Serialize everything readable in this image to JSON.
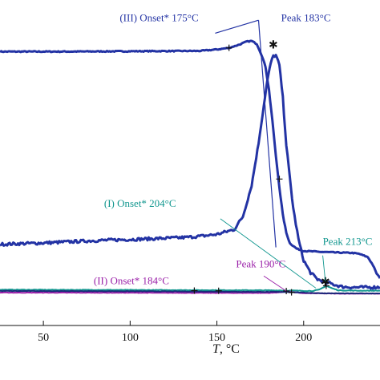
{
  "chart_data": {
    "type": "line",
    "xlabel_italic": "T",
    "xlabel_unit": ", °C",
    "xlim": [
      25,
      244
    ],
    "ylim": [
      0,
      1
    ],
    "x_ticks": [
      50,
      100,
      150,
      200
    ],
    "x_tick_labels": [
      "50",
      "100",
      "150",
      "200"
    ],
    "grid": false,
    "colors": {
      "blue": "#2333a4",
      "teal": "#12978f",
      "purple": "#9a1fa8",
      "connector": "#777777"
    },
    "series": [
      {
        "key": "III",
        "color": "#2333a4",
        "width": 3,
        "points": [
          [
            25,
            0.8415
          ],
          [
            60,
            0.8415
          ],
          [
            100,
            0.8425
          ],
          [
            140,
            0.8435
          ],
          [
            150,
            0.848
          ],
          [
            157,
            0.853
          ],
          [
            163,
            0.863
          ],
          [
            167,
            0.872
          ],
          [
            170,
            0.874
          ],
          [
            173,
            0.865
          ],
          [
            176,
            0.828
          ],
          [
            178,
            0.795
          ],
          [
            180,
            0.725
          ],
          [
            182,
            0.628
          ],
          [
            184,
            0.52
          ],
          [
            186,
            0.425
          ],
          [
            188,
            0.34
          ],
          [
            190,
            0.285
          ],
          [
            192,
            0.253
          ],
          [
            196,
            0.236
          ],
          [
            200,
            0.229
          ],
          [
            210,
            0.226
          ],
          [
            220,
            0.224
          ],
          [
            228,
            0.223
          ],
          [
            232,
            0.22
          ],
          [
            237,
            0.21
          ],
          [
            240,
            0.185
          ],
          [
            242,
            0.16
          ],
          [
            244,
            0.145
          ]
        ],
        "jitter": 0.0015
      },
      {
        "key": "I",
        "color": "#2333a4",
        "width": 3,
        "points": [
          [
            25,
            0.2495
          ],
          [
            50,
            0.2535
          ],
          [
            80,
            0.261
          ],
          [
            110,
            0.266
          ],
          [
            130,
            0.27
          ],
          [
            140,
            0.274
          ],
          [
            150,
            0.28
          ],
          [
            160,
            0.295
          ],
          [
            165,
            0.335
          ],
          [
            170,
            0.43
          ],
          [
            174,
            0.56
          ],
          [
            177,
            0.675
          ],
          [
            179,
            0.75
          ],
          [
            181,
            0.805
          ],
          [
            182.5,
            0.828
          ],
          [
            184,
            0.83
          ],
          [
            186,
            0.8
          ],
          [
            188,
            0.7
          ],
          [
            190,
            0.555
          ],
          [
            192,
            0.455
          ],
          [
            194,
            0.36
          ],
          [
            197,
            0.265
          ],
          [
            200,
            0.2
          ],
          [
            204,
            0.162
          ],
          [
            208,
            0.142
          ],
          [
            212,
            0.133
          ],
          [
            215,
            0.13
          ],
          [
            218,
            0.125
          ],
          [
            222,
            0.119
          ],
          [
            230,
            0.117
          ],
          [
            238,
            0.117
          ],
          [
            244,
            0.118
          ]
        ],
        "jitter": 0.0045
      },
      {
        "key": "teal",
        "color": "#12978f",
        "width": 2,
        "points": [
          [
            25,
            0.11
          ],
          [
            100,
            0.109
          ],
          [
            150,
            0.1085
          ],
          [
            180,
            0.108
          ],
          [
            195,
            0.107
          ],
          [
            205,
            0.106
          ],
          [
            209,
            0.11
          ],
          [
            213,
            0.122
          ],
          [
            216,
            0.115
          ],
          [
            220,
            0.108
          ],
          [
            230,
            0.107
          ],
          [
            244,
            0.107
          ]
        ],
        "jitter": 0.0008
      },
      {
        "key": "II",
        "color": "#9a1fa8",
        "width": 2,
        "points": [
          [
            25,
            0.101
          ],
          [
            100,
            0.1005
          ],
          [
            150,
            0.1
          ],
          [
            180,
            0.1
          ],
          [
            187,
            0.102
          ],
          [
            190,
            0.105
          ],
          [
            194,
            0.102
          ],
          [
            200,
            0.099
          ],
          [
            220,
            0.098
          ],
          [
            244,
            0.098
          ]
        ],
        "jitter": 0.0006
      },
      {
        "key": "navy",
        "color": "#1b2a7a",
        "width": 2,
        "points": [
          [
            25,
            0.106
          ],
          [
            100,
            0.105
          ],
          [
            150,
            0.104
          ],
          [
            190,
            0.103
          ],
          [
            205,
            0.1
          ],
          [
            212,
            0.099
          ],
          [
            225,
            0.0985
          ],
          [
            244,
            0.0985
          ]
        ],
        "jitter": 0.0006
      }
    ],
    "markers": [
      {
        "x": 157,
        "y": 0.853,
        "style": "cross"
      },
      {
        "x": 182.5,
        "y": 0.863,
        "style": "star"
      },
      {
        "x": 186,
        "y": 0.45,
        "style": "cross"
      },
      {
        "x": 212.5,
        "y": 0.136,
        "style": "star"
      },
      {
        "x": 137,
        "y": 0.107,
        "style": "cross"
      },
      {
        "x": 151,
        "y": 0.1065,
        "style": "cross"
      },
      {
        "x": 190,
        "y": 0.106,
        "style": "cross"
      },
      {
        "x": 193,
        "y": 0.102,
        "style": "cross"
      },
      {
        "x": 213,
        "y": 0.122,
        "style": "cross"
      }
    ],
    "onset_III_tangents": [
      {
        "from": [
          149,
          0.898
        ],
        "to": [
          174,
          0.938
        ]
      },
      {
        "from": [
          174,
          0.938
        ],
        "to": [
          184,
          0.24
        ]
      }
    ],
    "annotations": [
      {
        "id": "ann-III-onset",
        "text": "(III) Onset*  175°C",
        "color": "#2333a4",
        "x": 94,
        "y": 0.935,
        "leader": null
      },
      {
        "id": "ann-III-peak",
        "text": "Peak 183°C",
        "color": "#2333a4",
        "x": 187,
        "y": 0.935,
        "leader": null
      },
      {
        "id": "ann-I-onset",
        "text": "(I) Onset*  204°C",
        "color": "#12978f",
        "x": 85,
        "y": 0.364,
        "leader": [
          [
            152,
            0.328
          ],
          [
            207,
            0.115
          ]
        ]
      },
      {
        "id": "ann-peak-213",
        "text": "Peak 213°C",
        "color": "#12978f",
        "x": 211,
        "y": 0.247,
        "leader": [
          [
            211,
            0.215
          ],
          [
            212.5,
            0.136
          ]
        ]
      },
      {
        "id": "ann-peak-190",
        "text": "Peak 190°C",
        "color": "#9a1fa8",
        "x": 161,
        "y": 0.178,
        "leader": [
          [
            177,
            0.152
          ],
          [
            190,
            0.106
          ]
        ]
      },
      {
        "id": "ann-II-onset",
        "text": "(II) Onset*  184°C",
        "color": "#9a1fa8",
        "x": 79,
        "y": 0.127,
        "leader": null
      }
    ]
  }
}
